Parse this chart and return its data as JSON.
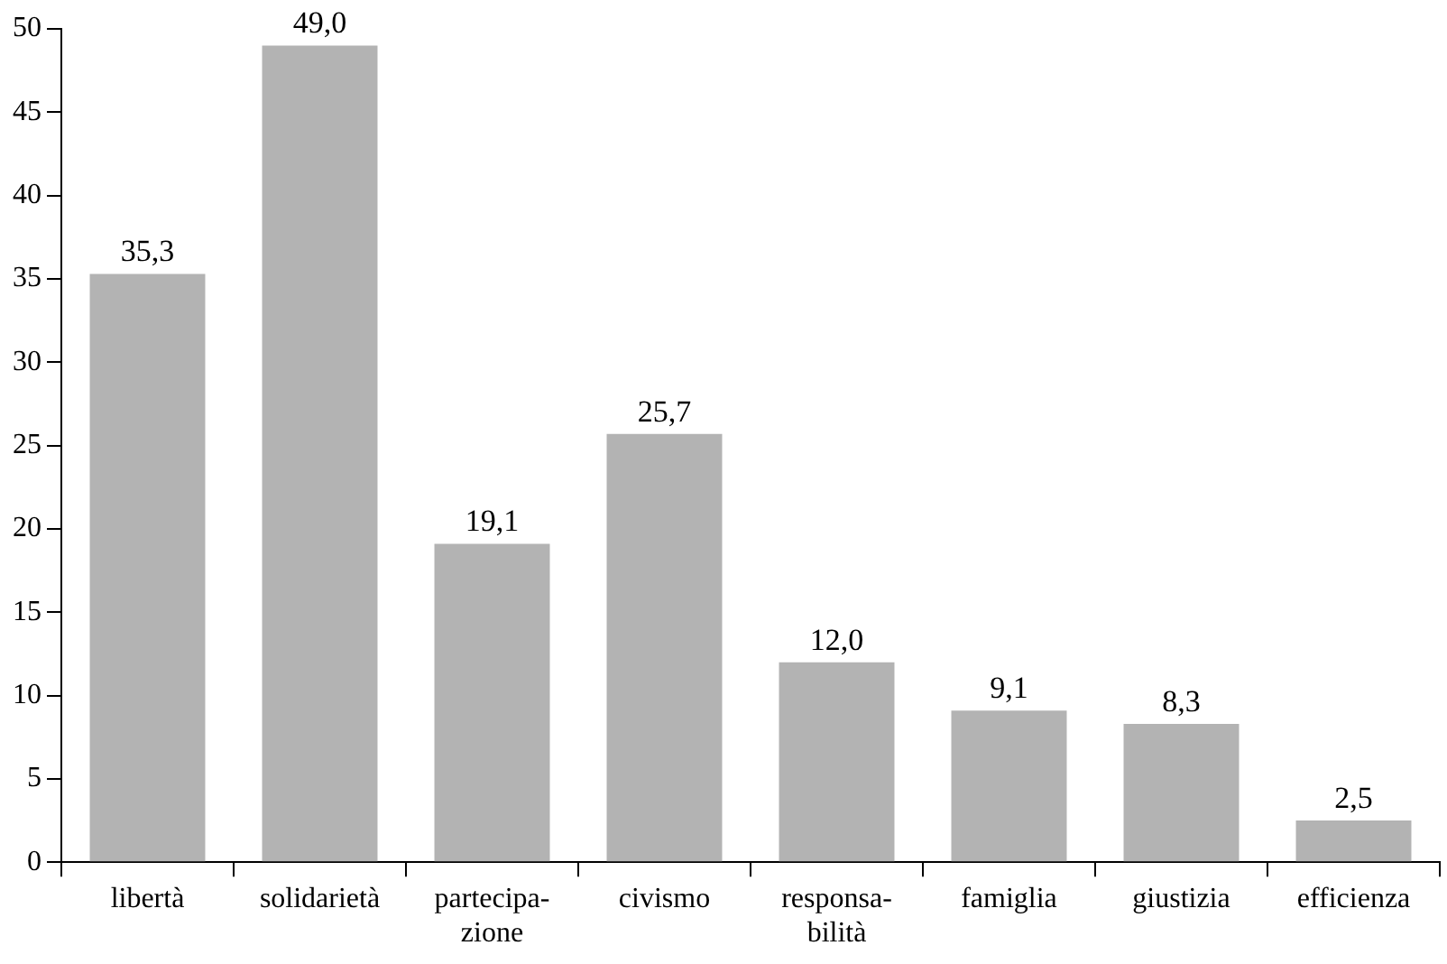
{
  "chart_data": {
    "type": "bar",
    "categories": [
      "libertà",
      "solidarietà",
      "partecipa-\nzione",
      "civismo",
      "responsa-\nbilità",
      "famiglia",
      "giustizia",
      "efficienza"
    ],
    "values": [
      35.3,
      49.0,
      19.1,
      25.7,
      12.0,
      9.1,
      8.3,
      2.5
    ],
    "color": "#b3b3b3",
    "ylim": [
      0,
      50
    ],
    "yticks": [
      0,
      5,
      10,
      15,
      20,
      25,
      30,
      35,
      40,
      45,
      50
    ],
    "value_labels": [
      "35,3",
      "49,0",
      "19,1",
      "25,7",
      "12,0",
      "9,1",
      "8,3",
      "2,5"
    ],
    "grid": false,
    "legend": false
  }
}
